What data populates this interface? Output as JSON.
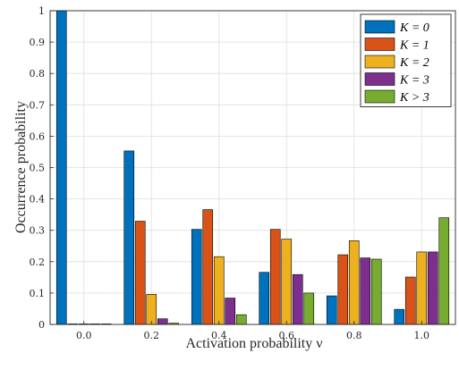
{
  "chart_data": {
    "type": "bar",
    "categories": [
      "0.0",
      "0.2",
      "0.4",
      "0.6",
      "0.8",
      "1.0"
    ],
    "series": [
      {
        "name": "K = 0",
        "color": "#0072BD",
        "values": [
          1.0,
          0.553,
          0.303,
          0.166,
          0.091,
          0.048
        ]
      },
      {
        "name": "K = 1",
        "color": "#D95319",
        "values": [
          0.0,
          0.329,
          0.366,
          0.303,
          0.222,
          0.151
        ]
      },
      {
        "name": "K = 2",
        "color": "#EDB120",
        "values": [
          0.0,
          0.096,
          0.216,
          0.272,
          0.267,
          0.231
        ]
      },
      {
        "name": "K = 3",
        "color": "#7E2F8E",
        "values": [
          0.0,
          0.018,
          0.084,
          0.159,
          0.212,
          0.231
        ]
      },
      {
        "name": "K > 3",
        "color": "#77AC30",
        "values": [
          0.0,
          0.004,
          0.031,
          0.1,
          0.208,
          0.34
        ]
      }
    ],
    "xlabel": "Activation probability ν",
    "ylabel": "Occurrence probability",
    "ylim": [
      0,
      1
    ],
    "yticks": [
      "0",
      "0.1",
      "0.2",
      "0.3",
      "0.4",
      "0.5",
      "0.6",
      "0.7",
      "0.8",
      "0.9",
      "1"
    ],
    "grid": true,
    "legend_position": "top-right"
  }
}
